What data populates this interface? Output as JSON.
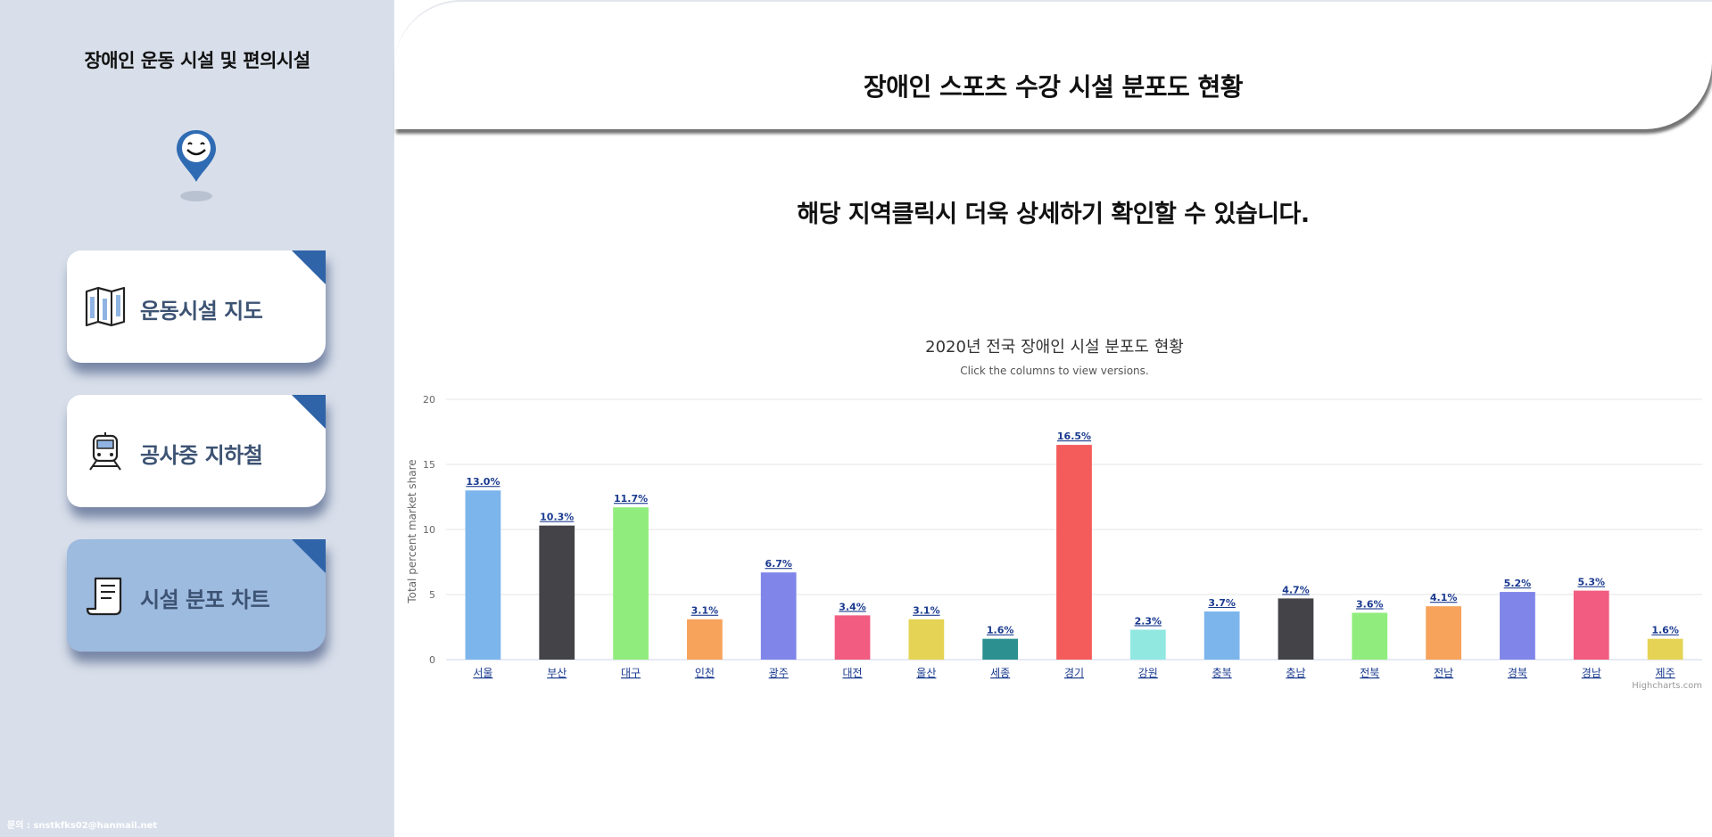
{
  "sidebar": {
    "title": "장애인 운동 시설 및 편의시설",
    "menu": [
      {
        "label": "운동시설 지도",
        "icon": "map-icon",
        "active": false
      },
      {
        "label": "공사중 지하철",
        "icon": "train-icon",
        "active": false
      },
      {
        "label": "시설 분포 차트",
        "icon": "scroll-icon",
        "active": true
      }
    ],
    "contact": "문의 : snstkfks02@hanmail.net"
  },
  "header": {
    "title": "장애인 스포츠 수강 시설 분포도 현황"
  },
  "main": {
    "note": "해당 지역클릭시 더욱 상세하기 확인할 수 있습니다."
  },
  "colors": {
    "sidebar_bg": "#d8dfea",
    "active_card": "#9dbadf",
    "accent": "#2f64a8",
    "menu_text": "#3d5373"
  },
  "chart_data": {
    "type": "bar",
    "title": "2020년 전국 장애인 시설 분포도 현황",
    "subtitle": "Click the columns to view versions.",
    "ylabel": "Total percent market share",
    "ylim": [
      0,
      20
    ],
    "yticks": [
      0,
      5,
      10,
      15,
      20
    ],
    "grid": true,
    "credits": "Highcharts.com",
    "categories": [
      "서울",
      "부산",
      "대구",
      "인천",
      "광주",
      "대전",
      "울산",
      "세종",
      "경기",
      "강원",
      "충북",
      "충남",
      "전북",
      "전남",
      "경북",
      "경남",
      "제주"
    ],
    "values": [
      13.0,
      10.3,
      11.7,
      3.1,
      6.7,
      3.4,
      3.1,
      1.6,
      16.5,
      2.3,
      3.7,
      4.7,
      3.6,
      4.1,
      5.2,
      5.3,
      1.6
    ],
    "data_labels": [
      "13.0%",
      "10.3%",
      "11.7%",
      "3.1%",
      "6.7%",
      "3.4%",
      "3.1%",
      "1.6%",
      "16.5%",
      "2.3%",
      "3.7%",
      "4.7%",
      "3.6%",
      "4.1%",
      "5.2%",
      "5.3%",
      "1.6%"
    ],
    "bar_colors": [
      "#7cb5ec",
      "#434348",
      "#90ed7d",
      "#f7a35c",
      "#8085e9",
      "#f15c80",
      "#e4d354",
      "#2b908f",
      "#f45b5b",
      "#91e8e1",
      "#7cb5ec",
      "#434348",
      "#90ed7d",
      "#f7a35c",
      "#8085e9",
      "#f15c80",
      "#e4d354"
    ]
  }
}
